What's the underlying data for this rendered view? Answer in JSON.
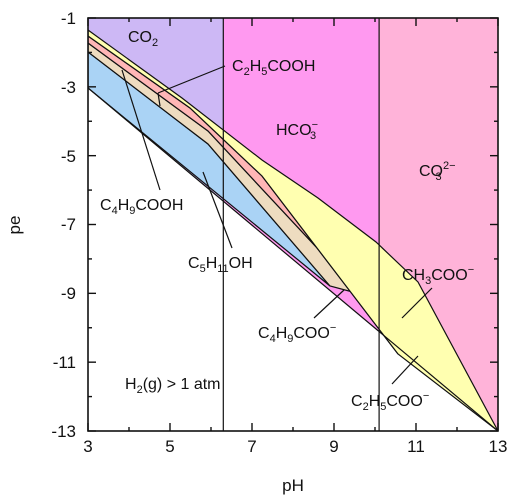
{
  "chart_data": {
    "type": "area",
    "xlabel": "pH",
    "ylabel": "pe",
    "xlim": [
      3,
      13
    ],
    "ylim": [
      -13,
      -1
    ],
    "x_ticks": [
      "3",
      "5",
      "7",
      "9",
      "11",
      "13"
    ],
    "y_ticks": [
      "-1",
      "-3",
      "-5",
      "-7",
      "-9",
      "-11",
      "-13"
    ],
    "boundaries": {
      "co2_hco3_pH": 6.3,
      "hco3_co3_pH": 10.1
    },
    "region_fills": {
      "co2": "#cdb8f5",
      "hco3": "#ff99f0",
      "co3": "#ffb3d9",
      "acetate": "#ffffb0",
      "propionate": "#ffb6b6",
      "butyrate": "#eedcc0",
      "pentanol": "#aad3f5"
    },
    "labels": {
      "co2": {
        "base": "CO",
        "sub": "2"
      },
      "hco3": {
        "base": "HCO",
        "sub": "3",
        "sup": "−"
      },
      "co3": {
        "base": "CO",
        "sub": "3",
        "sup": "2−"
      },
      "c2h5cooh": {
        "parts": [
          [
            "C",
            ""
          ],
          [
            "2",
            "sub"
          ],
          [
            "H",
            ""
          ],
          [
            "5",
            "sub"
          ],
          [
            "COOH",
            ""
          ]
        ]
      },
      "c4h9cooh": {
        "parts": [
          [
            "C",
            ""
          ],
          [
            "4",
            "sub"
          ],
          [
            "H",
            ""
          ],
          [
            "9",
            "sub"
          ],
          [
            "COOH",
            ""
          ]
        ]
      },
      "c5h11oh": {
        "parts": [
          [
            "C",
            ""
          ],
          [
            "5",
            "sub"
          ],
          [
            "H",
            ""
          ],
          [
            "11",
            "sub"
          ],
          [
            "OH",
            ""
          ]
        ]
      },
      "ch3coo": {
        "parts": [
          [
            "CH",
            ""
          ],
          [
            "3",
            "sub"
          ],
          [
            "COO",
            ""
          ],
          [
            "−",
            "sup"
          ]
        ]
      },
      "c4h9coo": {
        "parts": [
          [
            "C",
            ""
          ],
          [
            "4",
            "sub"
          ],
          [
            "H",
            ""
          ],
          [
            "9",
            "sub"
          ],
          [
            "COO",
            ""
          ],
          [
            "−",
            "sup"
          ]
        ]
      },
      "c2h5coo": {
        "parts": [
          [
            "C",
            ""
          ],
          [
            "2",
            "sub"
          ],
          [
            "H",
            ""
          ],
          [
            "5",
            "sub"
          ],
          [
            "COO",
            ""
          ],
          [
            "−",
            "sup"
          ]
        ]
      },
      "h2": {
        "parts": [
          [
            "H",
            ""
          ],
          [
            "2",
            "sub"
          ],
          [
            "(g) > 1 atm",
            ""
          ]
        ]
      }
    }
  }
}
